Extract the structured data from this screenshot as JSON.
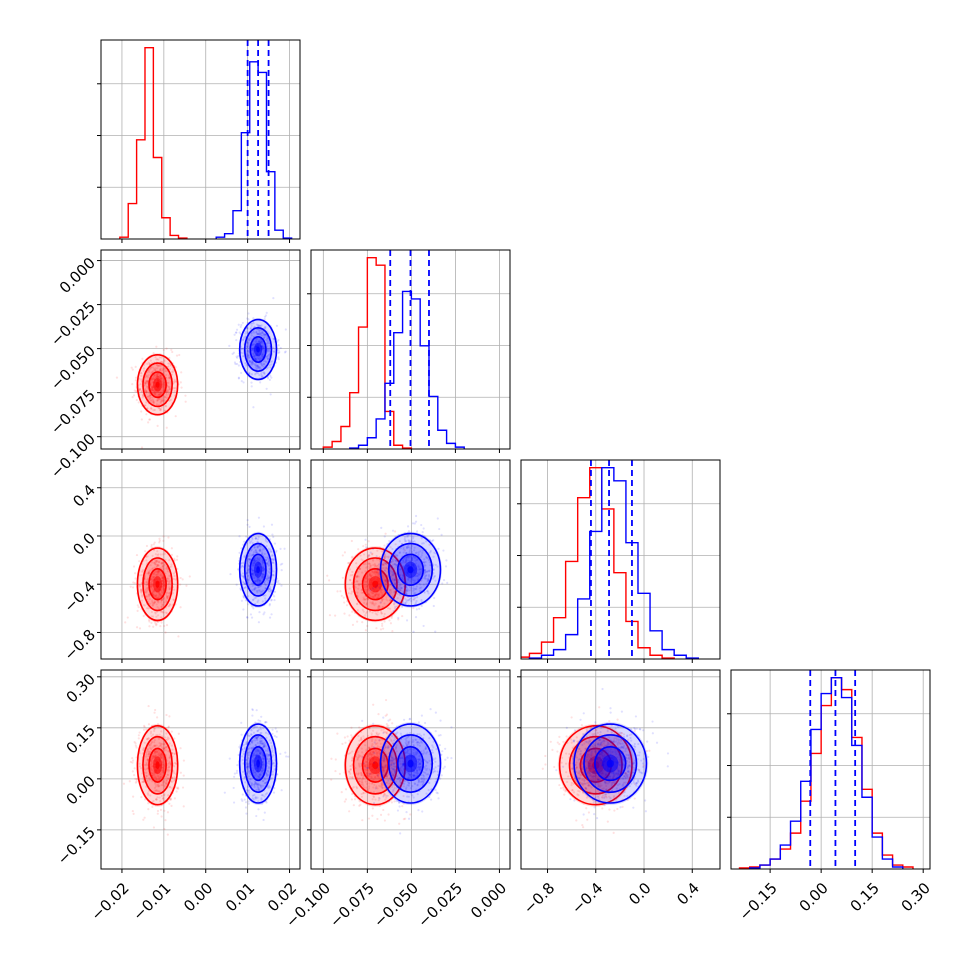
{
  "chart_data": {
    "type": "corner",
    "grid": true,
    "legend": "none",
    "colors": {
      "red": "#ff0000",
      "blue": "#0000ff"
    },
    "series": [
      {
        "color": "#ff0000",
        "mean": [
          -0.0115,
          -0.0705,
          -0.4,
          0.04
        ],
        "sd": [
          0.0024,
          0.0085,
          0.15,
          0.058
        ],
        "quantiles": null,
        "histograms": [
          {
            "x": [
              -0.0195,
              -0.0175,
              -0.0155,
              -0.0135,
              -0.0115,
              -0.0095,
              -0.0075,
              -0.0055
            ],
            "y": [
              1,
              20,
              56,
              108,
              46,
              12,
              2,
              0.5
            ]
          },
          {
            "x": [
              -0.0975,
              -0.0925,
              -0.0875,
              -0.0825,
              -0.0775,
              -0.0725,
              -0.0675,
              -0.0625,
              -0.0575,
              -0.0525
            ],
            "y": [
              1,
              4,
              12,
              30,
              65,
              102,
              98,
              20,
              2,
              0.5
            ]
          },
          {
            "x": [
              -1.0,
              -0.9,
              -0.8,
              -0.7,
              -0.6,
              -0.5,
              -0.4,
              -0.3,
              -0.2,
              -0.1,
              0.0,
              0.1,
              0.2
            ],
            "y": [
              1,
              3,
              9,
              22,
              52,
              86,
              102,
              80,
              46,
              20,
              6,
              2,
              0.5
            ]
          },
          {
            "x": [
              -0.225,
              -0.195,
              -0.165,
              -0.135,
              -0.105,
              -0.075,
              -0.045,
              -0.015,
              0.015,
              0.045,
              0.075,
              0.105,
              0.135,
              0.165,
              0.195,
              0.225,
              0.255
            ],
            "y": [
              0.5,
              1,
              2,
              5,
              10,
              18,
              34,
              58,
              82,
              96,
              90,
              66,
              40,
              18,
              7,
              2,
              1
            ]
          }
        ]
      },
      {
        "color": "#0000ff",
        "mean": [
          0.0125,
          -0.0505,
          -0.28,
          0.045
        ],
        "sd": [
          0.0022,
          0.0085,
          0.15,
          0.058
        ],
        "quantiles": [
          [
            0.01,
            0.0125,
            0.015
          ],
          [
            -0.062,
            -0.0505,
            -0.04
          ],
          [
            -0.44,
            -0.29,
            -0.1
          ],
          [
            -0.032,
            0.042,
            0.1
          ]
        ],
        "histograms": [
          {
            "x": [
              0.0035,
              0.0055,
              0.0075,
              0.0095,
              0.0115,
              0.0135,
              0.0155,
              0.0175,
              0.0195
            ],
            "y": [
              1,
              3,
              16,
              60,
              100,
              94,
              38,
              5,
              0.5
            ]
          },
          {
            "x": [
              -0.0825,
              -0.0775,
              -0.0725,
              -0.0675,
              -0.0625,
              -0.0575,
              -0.0525,
              -0.0475,
              -0.0425,
              -0.0375,
              -0.0325,
              -0.0275,
              -0.0225
            ],
            "y": [
              0.5,
              2,
              6,
              16,
              35,
              62,
              84,
              80,
              55,
              28,
              10,
              3,
              1
            ]
          },
          {
            "x": [
              -0.9,
              -0.8,
              -0.7,
              -0.6,
              -0.5,
              -0.4,
              -0.3,
              -0.2,
              -0.1,
              0.0,
              0.1,
              0.2,
              0.3,
              0.4
            ],
            "y": [
              0.5,
              2,
              5,
              13,
              32,
              68,
              102,
              95,
              62,
              35,
              15,
              5,
              2,
              0.5
            ]
          },
          {
            "x": [
              -0.195,
              -0.165,
              -0.135,
              -0.105,
              -0.075,
              -0.045,
              -0.015,
              0.015,
              0.045,
              0.075,
              0.105,
              0.135,
              0.165,
              0.195,
              0.225
            ],
            "y": [
              0.5,
              2,
              5,
              12,
              24,
              44,
              70,
              88,
              96,
              86,
              62,
              36,
              16,
              5,
              1
            ]
          }
        ]
      }
    ],
    "axes": [
      {
        "lim": [
          -0.025,
          0.0225
        ],
        "ticks": [
          -0.02,
          -0.01,
          0.0,
          0.01,
          0.02
        ],
        "tick_labels": [
          "−0.02",
          "−0.01",
          "0.00",
          "0.01",
          "0.02"
        ]
      },
      {
        "lim": [
          -0.107,
          0.006
        ],
        "ticks": [
          -0.1,
          -0.075,
          -0.05,
          -0.025,
          0.0
        ],
        "tick_labels": [
          "−0.100",
          "−0.075",
          "−0.050",
          "−0.025",
          "0.000"
        ]
      },
      {
        "lim": [
          -1.02,
          0.63
        ],
        "ticks": [
          -0.8,
          -0.4,
          0.0,
          0.4
        ],
        "tick_labels": [
          "−0.8",
          "−0.4",
          "0.0",
          "0.4"
        ]
      },
      {
        "lim": [
          -0.265,
          0.32
        ],
        "ticks": [
          -0.15,
          0.0,
          0.15,
          0.3
        ],
        "tick_labels": [
          "−0.15",
          "0.00",
          "0.15",
          "0.30"
        ]
      }
    ]
  }
}
